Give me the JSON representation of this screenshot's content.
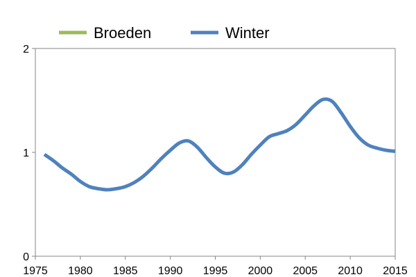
{
  "chart_data": {
    "type": "line",
    "title": "",
    "xlabel": "",
    "ylabel": "",
    "xlim": [
      1975,
      2015
    ],
    "ylim": [
      0,
      2
    ],
    "x_ticks": [
      "1975",
      "1980",
      "1985",
      "1990",
      "1995",
      "2000",
      "2005",
      "2010",
      "2015"
    ],
    "y_ticks": [
      "0",
      "1",
      "2"
    ],
    "grid": false,
    "legend_position": "top",
    "series": [
      {
        "name": "Broeden",
        "color": "#9bbb59",
        "x": [],
        "y": []
      },
      {
        "name": "Winter",
        "color": "#4f81bd",
        "x": [
          1976,
          1977,
          1978,
          1979,
          1980,
          1981,
          1982,
          1983,
          1984,
          1985,
          1986,
          1987,
          1988,
          1989,
          1990,
          1991,
          1992,
          1993,
          1994,
          1995,
          1996,
          1997,
          1998,
          1999,
          2000,
          2001,
          2002,
          2003,
          2004,
          2005,
          2006,
          2007,
          2008,
          2009,
          2010,
          2011,
          2012,
          2013,
          2014,
          2015
        ],
        "y": [
          0.98,
          0.92,
          0.85,
          0.79,
          0.72,
          0.67,
          0.65,
          0.64,
          0.65,
          0.67,
          0.71,
          0.77,
          0.85,
          0.94,
          1.02,
          1.09,
          1.11,
          1.05,
          0.95,
          0.86,
          0.8,
          0.81,
          0.88,
          0.98,
          1.07,
          1.15,
          1.18,
          1.21,
          1.27,
          1.36,
          1.45,
          1.51,
          1.49,
          1.38,
          1.25,
          1.14,
          1.07,
          1.04,
          1.02,
          1.01
        ]
      }
    ]
  }
}
